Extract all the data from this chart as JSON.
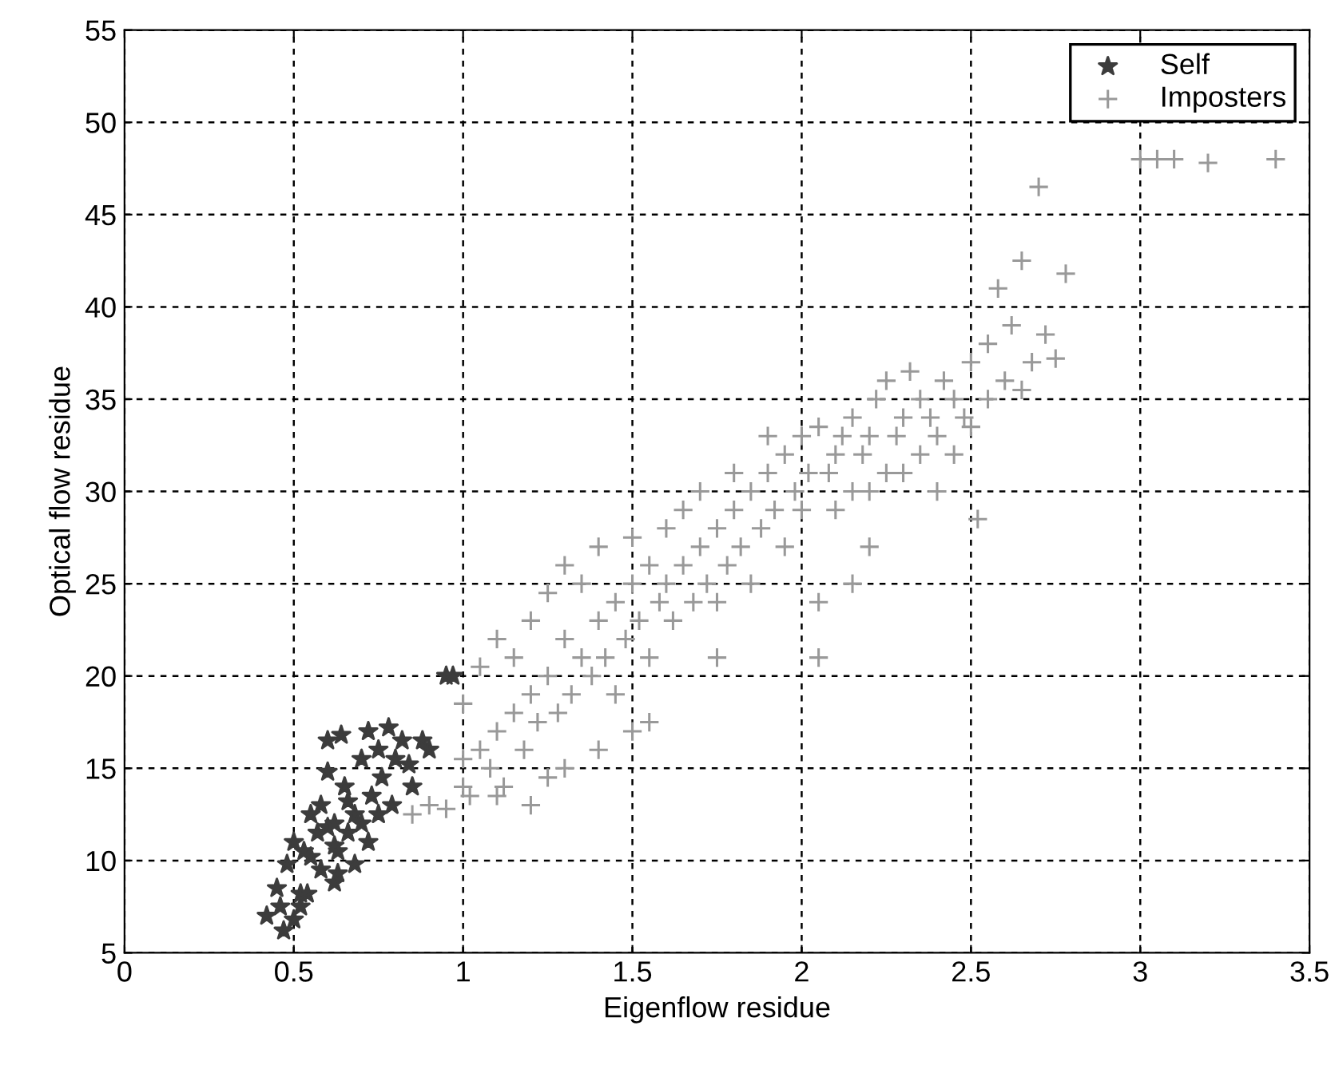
{
  "chart_data": {
    "type": "scatter",
    "xlabel": "Eigenflow residue",
    "ylabel": "Optical flow residue",
    "xlim": [
      0,
      3.5
    ],
    "xticks": [
      0,
      0.5,
      1,
      1.5,
      2,
      2.5,
      3,
      3.5
    ],
    "ylim": [
      5,
      55
    ],
    "yticks": [
      5,
      10,
      15,
      20,
      25,
      30,
      35,
      40,
      45,
      50,
      55
    ],
    "grid": true,
    "legend": "top right",
    "series": [
      {
        "name": "Self",
        "color": "#3c3c3c",
        "marker": "star",
        "x": [
          0.42,
          0.45,
          0.47,
          0.48,
          0.54,
          0.5,
          0.52,
          0.5,
          0.53,
          0.55,
          0.57,
          0.58,
          0.6,
          0.6,
          0.62,
          0.63,
          0.64,
          0.65,
          0.66,
          0.63,
          0.68,
          0.7,
          0.7,
          0.72,
          0.73,
          0.75,
          0.76,
          0.78,
          0.8,
          0.82,
          0.85,
          0.88,
          0.95,
          0.97,
          0.58,
          0.62,
          0.55,
          0.68,
          0.72,
          0.75,
          0.52,
          0.6,
          0.66,
          0.79,
          0.84,
          0.9,
          0.46,
          0.62
        ],
        "values": [
          7,
          8.5,
          6.2,
          9.8,
          8.2,
          6.8,
          7.5,
          11,
          10.5,
          12.5,
          11.5,
          13,
          11.8,
          16.5,
          12,
          10.5,
          16.8,
          14,
          11.5,
          9.3,
          12.5,
          15.5,
          12,
          17,
          13.5,
          16,
          14.5,
          17.2,
          15.5,
          16.5,
          14,
          16.5,
          20,
          20,
          9.5,
          8.8,
          10.2,
          9.8,
          11,
          12.5,
          8.2,
          14.8,
          13.2,
          13,
          15.2,
          16,
          7.5,
          10.8
        ]
      },
      {
        "name": "Imposters",
        "color": "#999999",
        "marker": "cross",
        "x": [
          0.85,
          0.9,
          0.95,
          1.0,
          1.0,
          1.02,
          1.05,
          1.05,
          1.08,
          1.1,
          1.1,
          1.12,
          1.15,
          1.15,
          1.18,
          1.2,
          1.2,
          1.22,
          1.25,
          1.25,
          1.28,
          1.3,
          1.3,
          1.32,
          1.35,
          1.35,
          1.38,
          1.4,
          1.4,
          1.42,
          1.45,
          1.45,
          1.48,
          1.5,
          1.5,
          1.52,
          1.55,
          1.55,
          1.58,
          1.6,
          1.6,
          1.62,
          1.65,
          1.65,
          1.68,
          1.7,
          1.7,
          1.72,
          1.75,
          1.75,
          1.78,
          1.8,
          1.8,
          1.82,
          1.85,
          1.85,
          1.88,
          1.9,
          1.9,
          1.92,
          1.95,
          1.95,
          1.98,
          2.0,
          2.0,
          2.02,
          2.05,
          2.05,
          2.08,
          2.1,
          2.1,
          2.12,
          2.15,
          2.15,
          2.18,
          2.2,
          2.2,
          2.22,
          2.25,
          2.25,
          2.28,
          2.3,
          2.3,
          2.32,
          2.35,
          2.35,
          2.38,
          2.4,
          2.4,
          2.42,
          2.45,
          2.45,
          2.48,
          2.5,
          2.5,
          2.52,
          2.55,
          2.55,
          2.58,
          2.6,
          2.62,
          2.65,
          2.65,
          2.68,
          2.7,
          2.72,
          2.75,
          2.78,
          3.0,
          3.05,
          3.1,
          3.2,
          3.4,
          1.0,
          1.5,
          1.55,
          1.2,
          1.3,
          2.05,
          2.15,
          2.2,
          1.75,
          1.4,
          1.1,
          1.25
        ],
        "values": [
          12.5,
          13,
          12.8,
          14,
          18.5,
          13.5,
          16,
          20.5,
          15,
          17,
          22,
          14,
          18,
          21,
          16,
          19,
          23,
          17.5,
          20,
          24.5,
          18,
          22,
          26,
          19,
          21,
          25,
          20,
          23,
          27,
          21,
          24,
          19,
          22,
          25,
          27.5,
          23,
          26,
          21,
          24,
          25,
          28,
          23,
          26,
          29,
          24,
          27,
          30,
          25,
          28,
          24,
          26,
          29,
          31,
          27,
          30,
          25,
          28,
          31,
          33,
          29,
          32,
          27,
          30,
          33,
          29,
          31,
          33.5,
          24,
          31,
          32,
          29,
          33,
          30,
          34,
          32,
          33,
          30,
          35,
          31,
          36,
          33,
          34,
          31,
          36.5,
          32,
          35,
          34,
          33,
          30,
          36,
          32,
          35,
          34,
          37,
          33.5,
          28.5,
          38,
          35,
          41,
          36,
          39,
          42.5,
          35.5,
          37,
          46.5,
          38.5,
          37.2,
          41.8,
          48,
          48,
          48,
          47.8,
          48,
          15.5,
          17,
          17.5,
          13,
          15,
          21,
          25,
          27,
          21,
          16,
          13.5,
          14.5
        ]
      }
    ]
  }
}
